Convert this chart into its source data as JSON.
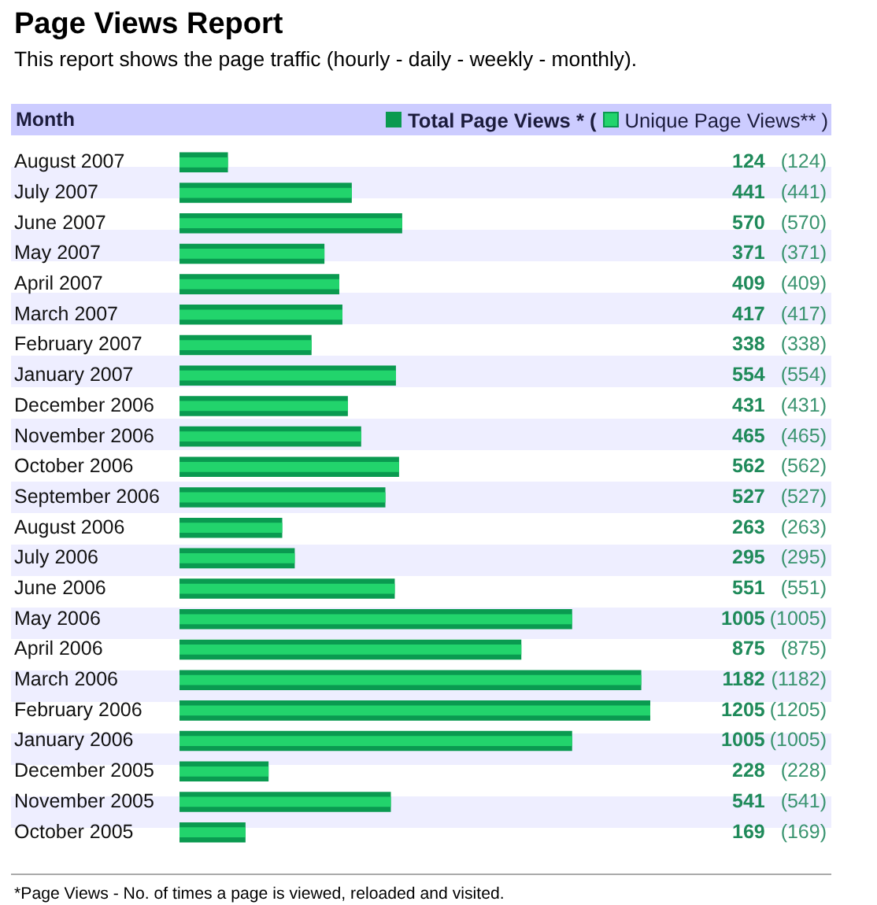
{
  "chart_data": {
    "type": "bar",
    "orientation": "horizontal",
    "title": "Page Views Report",
    "subtitle": "This report shows the page traffic (hourly - daily - weekly - monthly).",
    "ylabel": "Month",
    "categories": [
      "August 2007",
      "July 2007",
      "June 2007",
      "May 2007",
      "April 2007",
      "March 2007",
      "February 2007",
      "January 2007",
      "December 2006",
      "November 2006",
      "October 2006",
      "September 2006",
      "August 2006",
      "July 2006",
      "June 2006",
      "May 2006",
      "April 2006",
      "March 2006",
      "February 2006",
      "January 2006",
      "December 2005",
      "November 2005",
      "October 2005"
    ],
    "series": [
      {
        "name": "Total Page Views * (",
        "color": "#0a9a50",
        "values": [
          124,
          441,
          570,
          371,
          409,
          417,
          338,
          554,
          431,
          465,
          562,
          527,
          263,
          295,
          551,
          1005,
          875,
          1182,
          1205,
          1005,
          228,
          541,
          169
        ],
        "value_labels": [
          "124",
          "441",
          "570",
          "371",
          "409",
          "417",
          "338",
          "554",
          "431",
          "465",
          "562",
          "527",
          "263",
          "295",
          "551",
          "1005",
          "875",
          "1182",
          "1205",
          "1005",
          "228",
          "541",
          "169"
        ]
      },
      {
        "name": "Unique Page Views** )",
        "color": "#22d46c",
        "values": [
          124,
          441,
          570,
          371,
          409,
          417,
          338,
          554,
          431,
          465,
          562,
          527,
          263,
          295,
          551,
          1005,
          875,
          1182,
          1205,
          1005,
          228,
          541,
          169
        ],
        "value_labels": [
          "(124)",
          "(441)",
          "(570)",
          "(371)",
          "(409)",
          "(417)",
          "(338)",
          "(554)",
          "(431)",
          "(465)",
          "(562)",
          "(527)",
          "(263)",
          "(295)",
          "(551)",
          "(1005)",
          "(875)",
          "(1182)",
          "(1205)",
          "(1005)",
          "(228)",
          "(541)",
          "(169)"
        ]
      }
    ],
    "legend": "top right",
    "tick_labels": "y",
    "annotations": [
      "*Page Views - No. of times a page is viewed, reloaded and visited."
    ]
  }
}
